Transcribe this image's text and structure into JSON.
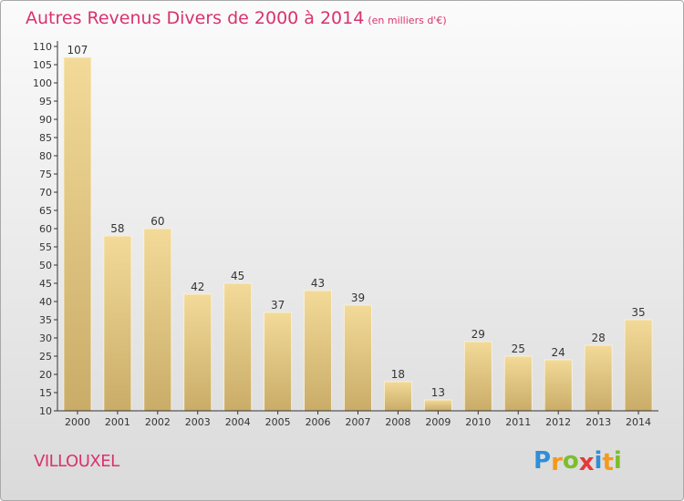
{
  "header": {
    "title": "Autres Revenus Divers de 2000 à 2014",
    "subtitle": "(en milliers d'€)"
  },
  "footer": {
    "place": "VILLOUXEL",
    "logo_letters": [
      {
        "ch": "P",
        "color": "#2e8fd8"
      },
      {
        "ch": "r",
        "color": "#f39a1e"
      },
      {
        "ch": "o",
        "color": "#7cbe2e"
      },
      {
        "ch": "x",
        "color": "#e23b3b"
      },
      {
        "ch": "i",
        "color": "#2e8fd8"
      },
      {
        "ch": "t",
        "color": "#f39a1e"
      },
      {
        "ch": "i",
        "color": "#7cbe2e"
      }
    ]
  },
  "chart_data": {
    "type": "bar",
    "categories": [
      "2000",
      "2001",
      "2002",
      "2003",
      "2004",
      "2005",
      "2006",
      "2007",
      "2008",
      "2009",
      "2010",
      "2011",
      "2012",
      "2013",
      "2014"
    ],
    "values": [
      107,
      58,
      60,
      42,
      45,
      37,
      43,
      39,
      18,
      13,
      29,
      25,
      24,
      28,
      35
    ],
    "ylim": [
      10,
      110
    ],
    "yticks": [
      10,
      15,
      20,
      25,
      30,
      35,
      40,
      45,
      50,
      55,
      60,
      65,
      70,
      75,
      80,
      85,
      90,
      95,
      100,
      105,
      110
    ],
    "grid": false,
    "bar_color_top": "#f3da98",
    "bar_color_bottom": "#c9ac68",
    "axis_color": "#333333"
  }
}
